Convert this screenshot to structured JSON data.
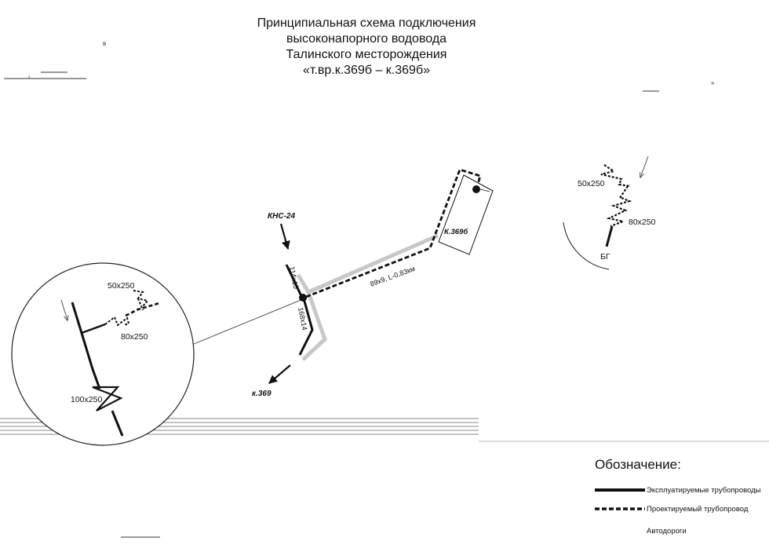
{
  "title": {
    "line1": "Принципиальная схема подключения",
    "line2": "высоконапорного водовода",
    "line3": "Талинского месторождения",
    "line4": "«т.вр.к.369б  –  к.369б»"
  },
  "marks": {
    "stray_b": "в",
    "stray_lt": "‹",
    "stray_rq": "»"
  },
  "main_scheme": {
    "kns_label": "КНС-24",
    "pad_label": "К.369б",
    "to_label": "к.369",
    "pipe_upper": "114х10",
    "pipe_lower": "168х14",
    "pipe_new": "89х9, L-0,83км"
  },
  "detail_circle": {
    "valve_small": "50х250",
    "valve_mid": "80х250",
    "valve_big": "100х250"
  },
  "pad_inset": {
    "valve_small": "50х250",
    "valve_mid": "80х250",
    "marker": "БГ"
  },
  "legend": {
    "title": "Обозначение:",
    "existing": "Эксплуатируемые трубопроводы",
    "planned": "Проектируемый трубопровод",
    "roads": "Автодороги"
  },
  "colors": {
    "ink": "#111111",
    "road": "#c8c8c8",
    "thin": "#777777"
  }
}
